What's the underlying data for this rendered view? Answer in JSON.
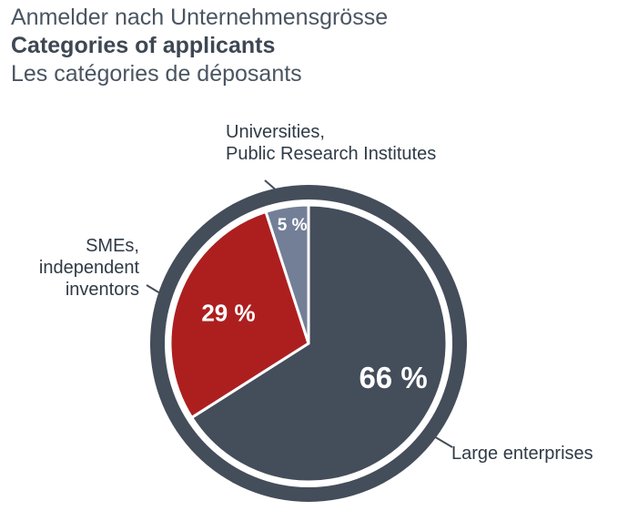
{
  "title_de": "Anmelder nach Unternehmensgrösse",
  "title_en": "Categories of applicants",
  "title_fr": "Les catégories de déposants",
  "colors": {
    "ring": "#444d5a",
    "large": "#444d5a",
    "sme": "#ad1f1f",
    "univ": "#737f97",
    "leader": "#444d5a"
  },
  "chart_data": {
    "type": "pie",
    "title": "Categories of applicants",
    "slices": [
      {
        "label_lines": [
          "Large enterprises"
        ],
        "value": 66,
        "value_label": "66 %",
        "color": "#444d5a"
      },
      {
        "label_lines": [
          "SMEs,",
          "independent",
          "inventors"
        ],
        "value": 29,
        "value_label": "29 %",
        "color": "#ad1f1f"
      },
      {
        "label_lines": [
          "Universities,",
          "Public Research Institutes"
        ],
        "value": 5,
        "value_label": "5 %",
        "color": "#737f97"
      }
    ]
  }
}
